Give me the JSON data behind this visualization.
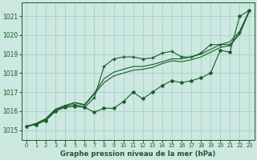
{
  "background_color": "#cce8e0",
  "grid_color": "#aad4cc",
  "line_color": "#1a5c28",
  "title": "Graphe pression niveau de la mer (hPa)",
  "xlim": [
    -0.5,
    23.5
  ],
  "ylim": [
    1014.5,
    1021.7
  ],
  "yticks": [
    1015,
    1016,
    1017,
    1018,
    1019,
    1020,
    1021
  ],
  "xticks": [
    0,
    1,
    2,
    3,
    4,
    5,
    6,
    7,
    8,
    9,
    10,
    11,
    12,
    13,
    14,
    15,
    16,
    17,
    18,
    19,
    20,
    21,
    22,
    23
  ],
  "series": {
    "line1_marked": [
      1015.2,
      1015.3,
      1015.5,
      1016.0,
      1016.2,
      1016.25,
      1016.2,
      1015.95,
      1016.15,
      1016.15,
      1016.5,
      1017.0,
      1016.65,
      1017.0,
      1017.35,
      1017.6,
      1017.5,
      1017.6,
      1017.75,
      1018.0,
      1019.2,
      1019.1,
      1021.0,
      1021.3
    ],
    "line2_marked": [
      1015.2,
      1015.3,
      1015.55,
      1016.05,
      1016.25,
      1016.35,
      1016.2,
      1016.7,
      1018.35,
      1018.75,
      1018.85,
      1018.85,
      1018.75,
      1018.8,
      1019.05,
      1019.15,
      1018.85,
      1018.85,
      1019.05,
      1019.5,
      1019.5,
      1019.5,
      1020.1,
      1021.3
    ],
    "line3_smooth": [
      1015.2,
      1015.35,
      1015.6,
      1016.1,
      1016.3,
      1016.45,
      1016.35,
      1016.95,
      1017.7,
      1018.05,
      1018.2,
      1018.35,
      1018.35,
      1018.45,
      1018.6,
      1018.75,
      1018.75,
      1018.85,
      1019.0,
      1019.25,
      1019.5,
      1019.65,
      1020.2,
      1021.3
    ],
    "line4_smooth": [
      1015.2,
      1015.35,
      1015.6,
      1016.1,
      1016.3,
      1016.45,
      1016.3,
      1016.9,
      1017.5,
      1017.85,
      1018.0,
      1018.15,
      1018.2,
      1018.3,
      1018.5,
      1018.65,
      1018.6,
      1018.7,
      1018.85,
      1019.1,
      1019.35,
      1019.45,
      1020.05,
      1021.25
    ]
  }
}
